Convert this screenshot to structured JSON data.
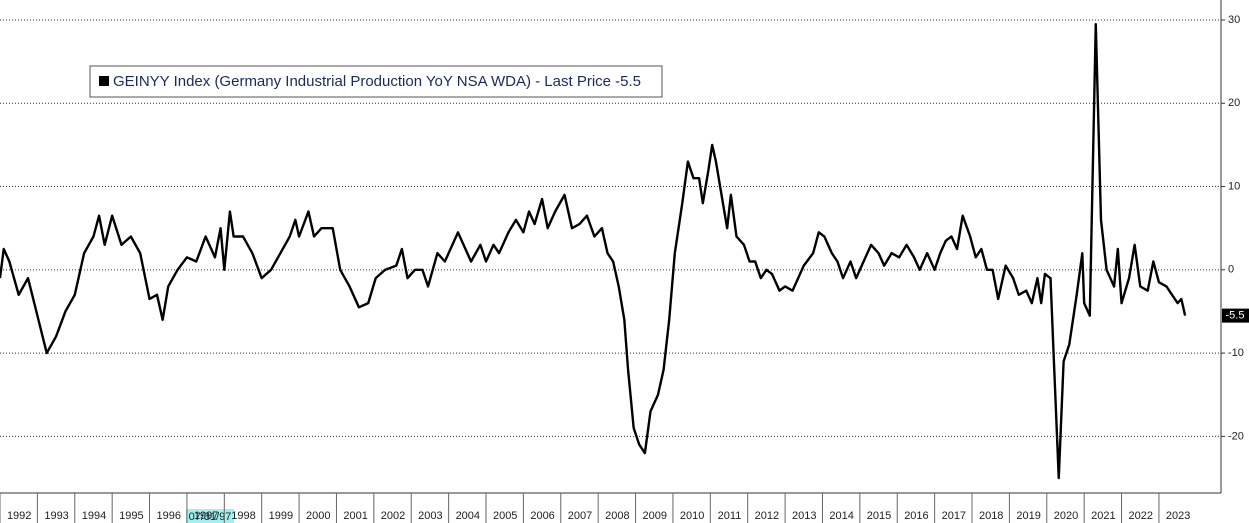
{
  "chart_data": {
    "type": "line",
    "annotation": "07/31/97",
    "xlim": [
      1992,
      2024.66
    ],
    "xticks": [
      1992,
      1993,
      1994,
      1995,
      1996,
      1997,
      1998,
      1999,
      2000,
      2001,
      2002,
      2003,
      2004,
      2005,
      2006,
      2007,
      2008,
      2009,
      2010,
      2011,
      2012,
      2013,
      2014,
      2015,
      2016,
      2017,
      2018,
      2019,
      2020,
      2021,
      2022,
      2023
    ],
    "ylim": [
      -26.8,
      32.4
    ],
    "yticks": [
      30,
      20,
      10,
      0,
      -10,
      -20
    ],
    "grid": true,
    "legend": "top-left",
    "x": [
      1992.0,
      1992.1,
      1992.25,
      1992.5,
      1992.75,
      1993.0,
      1993.25,
      1993.5,
      1993.75,
      1994.0,
      1994.25,
      1994.5,
      1994.65,
      1994.8,
      1995.0,
      1995.25,
      1995.5,
      1995.75,
      1996.0,
      1996.2,
      1996.35,
      1996.5,
      1996.75,
      1997.0,
      1997.25,
      1997.5,
      1997.75,
      1997.9,
      1998.0,
      1998.15,
      1998.25,
      1998.5,
      1998.75,
      1999.0,
      1999.25,
      1999.5,
      1999.75,
      1999.9,
      2000.0,
      2000.25,
      2000.4,
      2000.6,
      2000.9,
      2001.1,
      2001.35,
      2001.6,
      2001.85,
      2002.05,
      2002.3,
      2002.6,
      2002.75,
      2002.9,
      2003.1,
      2003.3,
      2003.45,
      2003.7,
      2003.9,
      2004.1,
      2004.25,
      2004.4,
      2004.6,
      2004.85,
      2005.0,
      2005.2,
      2005.35,
      2005.6,
      2005.8,
      2006.0,
      2006.15,
      2006.3,
      2006.5,
      2006.65,
      2006.85,
      2007.1,
      2007.3,
      2007.5,
      2007.7,
      2007.9,
      2008.1,
      2008.25,
      2008.4,
      2008.55,
      2008.7,
      2008.8,
      2008.95,
      2009.1,
      2009.25,
      2009.4,
      2009.6,
      2009.75,
      2009.9,
      2010.05,
      2010.25,
      2010.4,
      2010.55,
      2010.7,
      2010.8,
      2010.95,
      2011.05,
      2011.15,
      2011.3,
      2011.45,
      2011.55,
      2011.7,
      2011.9,
      2012.05,
      2012.2,
      2012.35,
      2012.5,
      2012.65,
      2012.85,
      2013.0,
      2013.2,
      2013.35,
      2013.5,
      2013.75,
      2013.9,
      2014.05,
      2014.25,
      2014.4,
      2014.55,
      2014.75,
      2014.9,
      2015.1,
      2015.3,
      2015.5,
      2015.65,
      2015.85,
      2016.05,
      2016.25,
      2016.45,
      2016.6,
      2016.8,
      2017.0,
      2017.15,
      2017.3,
      2017.45,
      2017.6,
      2017.75,
      2017.95,
      2018.1,
      2018.25,
      2018.4,
      2018.55,
      2018.7,
      2018.9,
      2019.1,
      2019.25,
      2019.45,
      2019.6,
      2019.75,
      2019.85,
      2019.95,
      2020.1,
      2020.2,
      2020.32,
      2020.45,
      2020.6,
      2020.8,
      2020.95,
      2021.0,
      2021.15,
      2021.31,
      2021.45,
      2021.6,
      2021.8,
      2021.9,
      2022.0,
      2022.2,
      2022.35,
      2022.5,
      2022.7,
      2022.85,
      2023.0,
      2023.2,
      2023.35,
      2023.5,
      2023.6,
      2023.7
    ],
    "series": [
      {
        "name": "GEINYY Index (Germany Industrial Production YoY NSA WDA) - Last Price -5.5",
        "color": "#000000",
        "values": [
          -1,
          2.5,
          1,
          -3,
          -1,
          -5.5,
          -10,
          -8,
          -5,
          -3,
          2,
          4,
          6.5,
          3,
          6.5,
          3,
          4,
          2,
          -3.5,
          -3,
          -6,
          -2,
          0,
          1.5,
          1,
          4,
          1.5,
          5,
          0,
          7,
          4,
          4,
          2,
          -1,
          0,
          2,
          4,
          6,
          4,
          7,
          4,
          5,
          5,
          0,
          -2,
          -4.5,
          -4,
          -1,
          0,
          0.5,
          2.5,
          -1,
          0,
          0,
          -2,
          2,
          1,
          3,
          4.5,
          3,
          1,
          3,
          1,
          3,
          2,
          4.5,
          6,
          4.5,
          7,
          5.5,
          8.5,
          5,
          7,
          9,
          5,
          5.5,
          6.5,
          4,
          5,
          2,
          1,
          -2,
          -6,
          -12,
          -19,
          -21,
          -22,
          -17,
          -15,
          -12,
          -6,
          2,
          8,
          13,
          11,
          11,
          8,
          12,
          15,
          13,
          9,
          5,
          9,
          4,
          3,
          1,
          1,
          -1,
          0,
          -0.5,
          -2.5,
          -2,
          -2.5,
          -1,
          0.5,
          2,
          4.5,
          4,
          2,
          1,
          -1,
          1,
          -1,
          1,
          3,
          2,
          0.5,
          2,
          1.5,
          3,
          1.5,
          0,
          2,
          0,
          2,
          3.5,
          4,
          2.5,
          6.5,
          4,
          1.5,
          2.5,
          0,
          0,
          -3.5,
          0.5,
          -1,
          -3,
          -2.5,
          -4,
          -1,
          -4,
          -0.5,
          -1,
          -12,
          -25,
          -11,
          -9,
          -3,
          2,
          -4,
          -5.5,
          29.5,
          6,
          0,
          -2,
          2.5,
          -4,
          -1,
          3,
          -2,
          -2.5,
          1,
          -1.5,
          -2,
          -3,
          -4,
          -3.5,
          -5.5
        ]
      }
    ]
  }
}
